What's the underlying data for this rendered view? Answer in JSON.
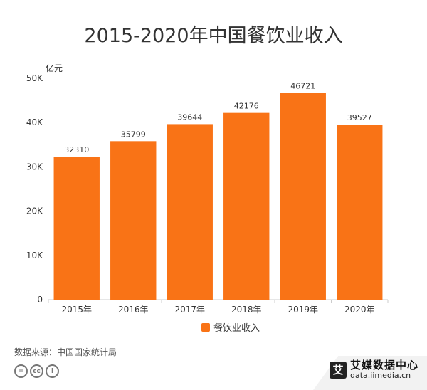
{
  "chart_data": {
    "type": "bar",
    "title": "2015-2020年中国餐饮业收入",
    "ylabel": "亿元",
    "categories": [
      "2015年",
      "2016年",
      "2017年",
      "2018年",
      "2019年",
      "2020年"
    ],
    "series": [
      {
        "name": "餐饮业收入",
        "values": [
          32310,
          35799,
          39644,
          42176,
          46721,
          39527
        ]
      }
    ],
    "ylim": [
      0,
      50000
    ],
    "yticks": [
      0,
      10000,
      20000,
      30000,
      40000,
      50000
    ],
    "ytick_labels": [
      "0",
      "10K",
      "20K",
      "30K",
      "40K",
      "50K"
    ],
    "data_labels": [
      "32310",
      "35799",
      "39644",
      "42176",
      "46721",
      "39527"
    ],
    "legend_position": "bottom",
    "grid": false,
    "colors": {
      "bar": "#f97316",
      "axis": "#cccccc",
      "text": "#333333"
    }
  },
  "footer": {
    "source": "数据来源：中国国家统计局",
    "brand_name": "艾媒数据中心",
    "brand_url": "data.iimedia.cn",
    "brand_logo_char": "艾",
    "license_icons": [
      "=",
      "cc",
      "i"
    ]
  }
}
